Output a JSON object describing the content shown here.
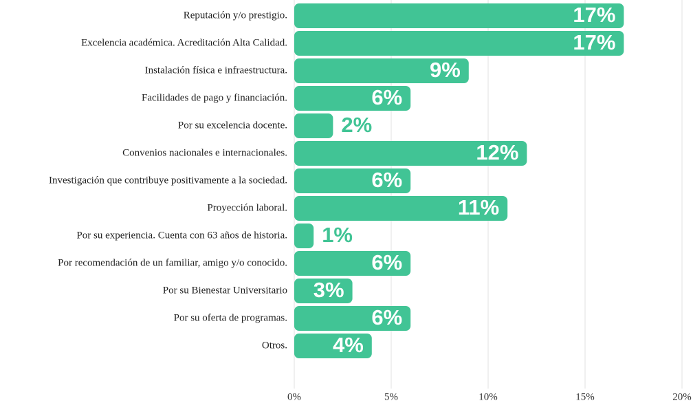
{
  "chart_data": {
    "type": "barh",
    "categories": [
      "Reputación y/o prestigio.",
      "Excelencia académica. Acreditación Alta Calidad.",
      "Instalación física e infraestructura.",
      "Facilidades de pago y financiación.",
      "Por su excelencia docente.",
      "Convenios nacionales e internacionales.",
      "Investigación que contribuye positivamente a la sociedad.",
      "Proyección laboral.",
      "Por su experiencia. Cuenta con 63 años de historia.",
      "Por recomendación de un familiar, amigo y/o conocido.",
      "Por su Bienestar Universitario",
      "Por su oferta de programas.",
      "Otros."
    ],
    "values": [
      17,
      17,
      9,
      6,
      2,
      12,
      6,
      11,
      1,
      6,
      3,
      6,
      4
    ],
    "value_labels": [
      "17%",
      "17%",
      "9%",
      "6%",
      "2%",
      "12%",
      "6%",
      "11%",
      "1%",
      "6%",
      "3%",
      "6%",
      "4%"
    ],
    "color": "#41c495",
    "xlim": [
      0,
      20
    ],
    "xticks": [
      {
        "value": 0,
        "label": "0%"
      },
      {
        "value": 5,
        "label": "5%"
      },
      {
        "value": 10,
        "label": "10%"
      },
      {
        "value": 15,
        "label": "15%"
      },
      {
        "value": 20,
        "label": "20%"
      }
    ],
    "grid": true
  }
}
